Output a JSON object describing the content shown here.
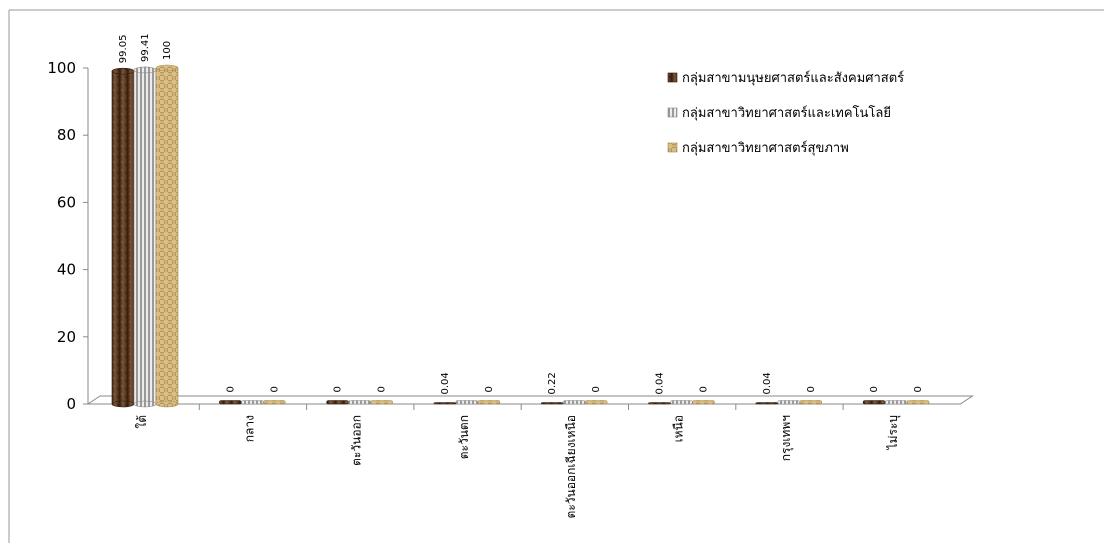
{
  "chart_data": {
    "type": "bar",
    "categories": [
      "ใต้",
      "กลาง",
      "ตะวันออก",
      "ตะวันตก",
      "ตะวันออกเฉียงเหนือ",
      "เหนือ",
      "กรุงเทพฯ",
      "ไม่ระบุ"
    ],
    "series": [
      {
        "name": "กลุ่มสาขามนุษยศาสตร์และสังคมศาสตร์",
        "values": [
          99.05,
          0,
          0,
          0.04,
          0.22,
          0.04,
          0.04,
          0
        ],
        "value_labels": [
          "99.05",
          "0",
          "0",
          "0.04",
          "0.22",
          "0.04",
          "0.04",
          "0"
        ],
        "color": "#5a3a22"
      },
      {
        "name": "กลุ่มสาขาวิทยาศาสตร์และเทคโนโลยี",
        "values": [
          99.41,
          0,
          0,
          0,
          0,
          0,
          0,
          0
        ],
        "value_labels": [
          "99.41",
          "",
          "",
          "",
          "",
          "",
          "",
          ""
        ],
        "color": "#c8c8c8"
      },
      {
        "name": "กลุ่มสาขาวิทยาศาสตร์สุขภาพ",
        "values": [
          100,
          0,
          0,
          0,
          0,
          0,
          0,
          0
        ],
        "value_labels": [
          "100",
          "0",
          "0",
          "0",
          "0",
          "0",
          "0",
          "0"
        ],
        "color": "#c8a96a"
      }
    ],
    "ylim": [
      0,
      100
    ],
    "yticks": [
      "0",
      "20",
      "40",
      "60",
      "80",
      "100"
    ],
    "xlabel": "",
    "ylabel": "",
    "legend_position": "top-right",
    "grid": false
  }
}
